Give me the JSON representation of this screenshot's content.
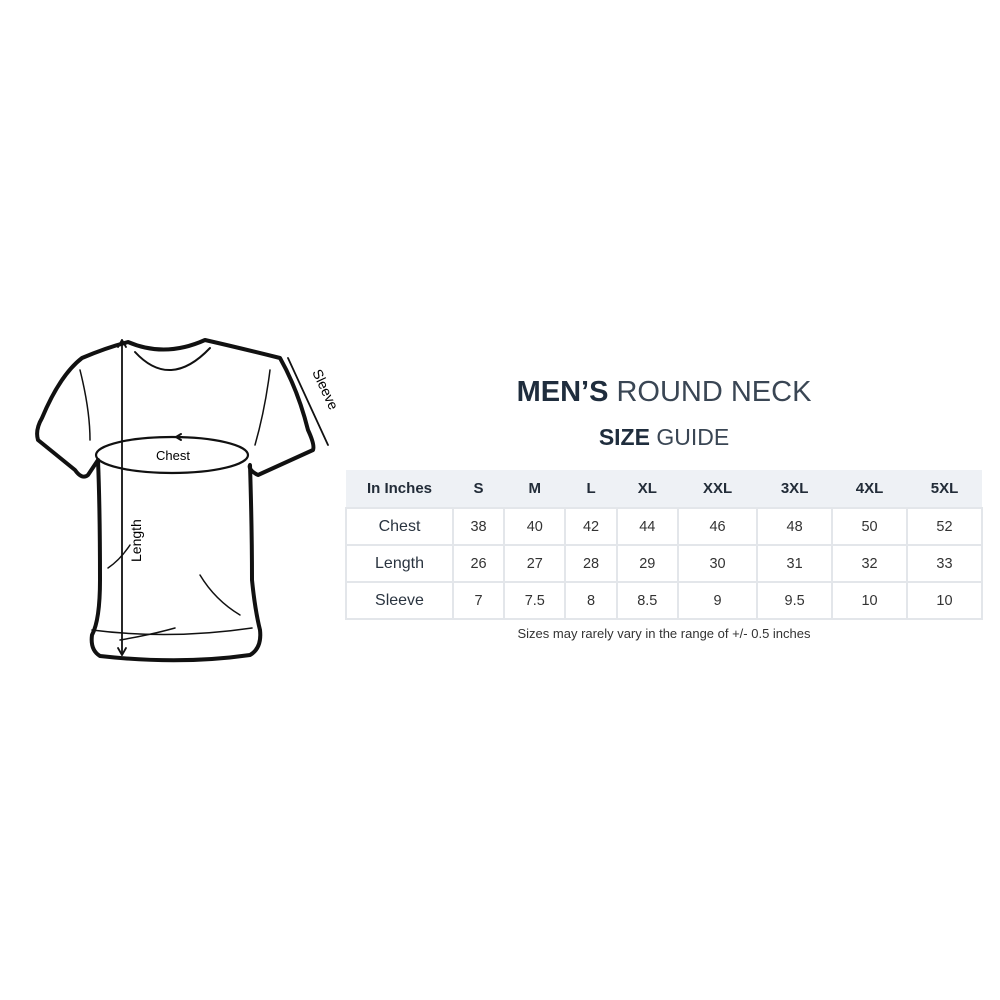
{
  "title": {
    "bold": "MEN’S",
    "light": "ROUND NECK"
  },
  "subtitle": {
    "bold": "SIZE",
    "light": "GUIDE"
  },
  "diagram": {
    "chest_label": "Chest",
    "length_label": "Length",
    "sleeve_label": "Sleeve"
  },
  "table": {
    "headers": [
      "In Inches",
      "S",
      "M",
      "L",
      "XL",
      "XXL",
      "3XL",
      "4XL",
      "5XL"
    ],
    "rows": [
      {
        "label": "Chest",
        "values": [
          "38",
          "40",
          "42",
          "44",
          "46",
          "48",
          "50",
          "52"
        ]
      },
      {
        "label": "Length",
        "values": [
          "26",
          "27",
          "28",
          "29",
          "30",
          "31",
          "32",
          "33"
        ]
      },
      {
        "label": "Sleeve",
        "values": [
          "7",
          "7.5",
          "8",
          "8.5",
          "9",
          "9.5",
          "10",
          "10"
        ]
      }
    ]
  },
  "note": "Sizes may rarely vary in the range of +/- 0.5 inches",
  "colors": {
    "title": "#1f2d3d",
    "header_bg": "#eef1f5",
    "border": "#e3e6ea"
  }
}
